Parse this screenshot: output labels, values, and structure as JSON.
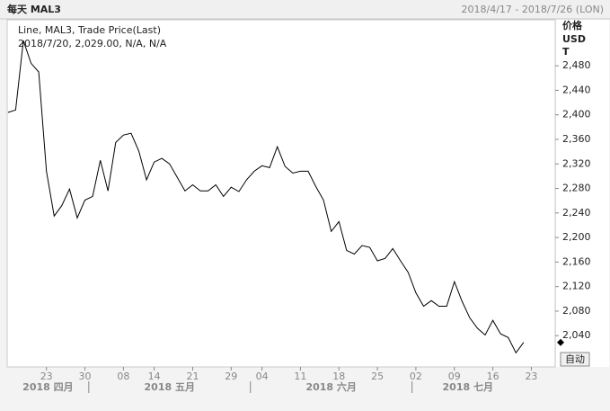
{
  "chart_data": {
    "type": "line",
    "title": "每天 MAL3",
    "date_range": "2018/4/17 - 2018/7/26 (LON)",
    "legend_lines": [
      "Line, MAL3, Trade Price(Last)",
      "2018/7/20, 2,029.00, N/A, N/A"
    ],
    "axis_title_lines": [
      "价格",
      "USD",
      "T"
    ],
    "button": "自动",
    "color": "#000000",
    "categories": [
      "2018/4/16",
      "2018/4/17",
      "2018/4/18",
      "2018/4/19",
      "2018/4/20",
      "2018/4/23",
      "2018/4/24",
      "2018/4/25",
      "2018/4/26",
      "2018/4/27",
      "2018/4/30",
      "2018/5/1",
      "2018/5/2",
      "2018/5/3",
      "2018/5/4",
      "2018/5/8",
      "2018/5/9",
      "2018/5/10",
      "2018/5/11",
      "2018/5/14",
      "2018/5/15",
      "2018/5/16",
      "2018/5/17",
      "2018/5/18",
      "2018/5/21",
      "2018/5/22",
      "2018/5/23",
      "2018/5/24",
      "2018/5/25",
      "2018/5/29",
      "2018/5/30",
      "2018/5/31",
      "2018/6/1",
      "2018/6/4",
      "2018/6/5",
      "2018/6/6",
      "2018/6/7",
      "2018/6/8",
      "2018/6/11",
      "2018/6/12",
      "2018/6/13",
      "2018/6/14",
      "2018/6/15",
      "2018/6/18",
      "2018/6/19",
      "2018/6/20",
      "2018/6/21",
      "2018/6/22",
      "2018/6/25",
      "2018/6/26",
      "2018/6/27",
      "2018/6/28",
      "2018/6/29",
      "2018/7/2",
      "2018/7/3",
      "2018/7/4",
      "2018/7/5",
      "2018/7/6",
      "2018/7/9",
      "2018/7/10",
      "2018/7/11",
      "2018/7/12",
      "2018/7/13",
      "2018/7/16",
      "2018/7/17",
      "2018/7/18",
      "2018/7/19",
      "2018/7/20"
    ],
    "values": [
      2404,
      2408,
      2521,
      2484,
      2470,
      2308,
      2235,
      2252,
      2279,
      2232,
      2261,
      2267,
      2326,
      2276,
      2355,
      2367,
      2370,
      2341,
      2294,
      2323,
      2329,
      2320,
      2298,
      2276,
      2286,
      2276,
      2276,
      2286,
      2267,
      2282,
      2275,
      2294,
      2308,
      2317,
      2314,
      2348,
      2316,
      2305,
      2308,
      2308,
      2283,
      2261,
      2210,
      2226,
      2179,
      2173,
      2187,
      2184,
      2162,
      2166,
      2182,
      2162,
      2143,
      2110,
      2088,
      2097,
      2088,
      2088,
      2128,
      2096,
      2069,
      2052,
      2041,
      2065,
      2043,
      2037,
      2012,
      2029
    ],
    "xlim": [
      -0.1,
      71.1
    ],
    "xticks": [
      {
        "value": 5,
        "label": "23"
      },
      {
        "value": 10,
        "label": "30"
      },
      {
        "value": 15,
        "label": "08"
      },
      {
        "value": 19,
        "label": "14"
      },
      {
        "value": 24,
        "label": "21"
      },
      {
        "value": 29,
        "label": "29"
      },
      {
        "value": 33,
        "label": "04"
      },
      {
        "value": 38,
        "label": "11"
      },
      {
        "value": 43,
        "label": "18"
      },
      {
        "value": 48,
        "label": "25"
      },
      {
        "value": 53,
        "label": "02"
      },
      {
        "value": 58,
        "label": "09"
      },
      {
        "value": 63,
        "label": "16"
      },
      {
        "value": 68,
        "label": "23"
      }
    ],
    "months": [
      "2018 四月",
      "2018 五月",
      "2018 六月",
      "2018 七月"
    ],
    "ylim": [
      1989,
      2555
    ],
    "yticks": [
      {
        "value": 2040,
        "label": "2,040"
      },
      {
        "value": 2080,
        "label": "2,080"
      },
      {
        "value": 2120,
        "label": "2,120"
      },
      {
        "value": 2160,
        "label": "2,160"
      },
      {
        "value": 2200,
        "label": "2,200"
      },
      {
        "value": 2240,
        "label": "2,240"
      },
      {
        "value": 2280,
        "label": "2,280"
      },
      {
        "value": 2320,
        "label": "2,320"
      },
      {
        "value": 2360,
        "label": "2,360"
      },
      {
        "value": 2400,
        "label": "2,400"
      },
      {
        "value": 2440,
        "label": "2,440"
      },
      {
        "value": 2480,
        "label": "2,480"
      }
    ]
  }
}
